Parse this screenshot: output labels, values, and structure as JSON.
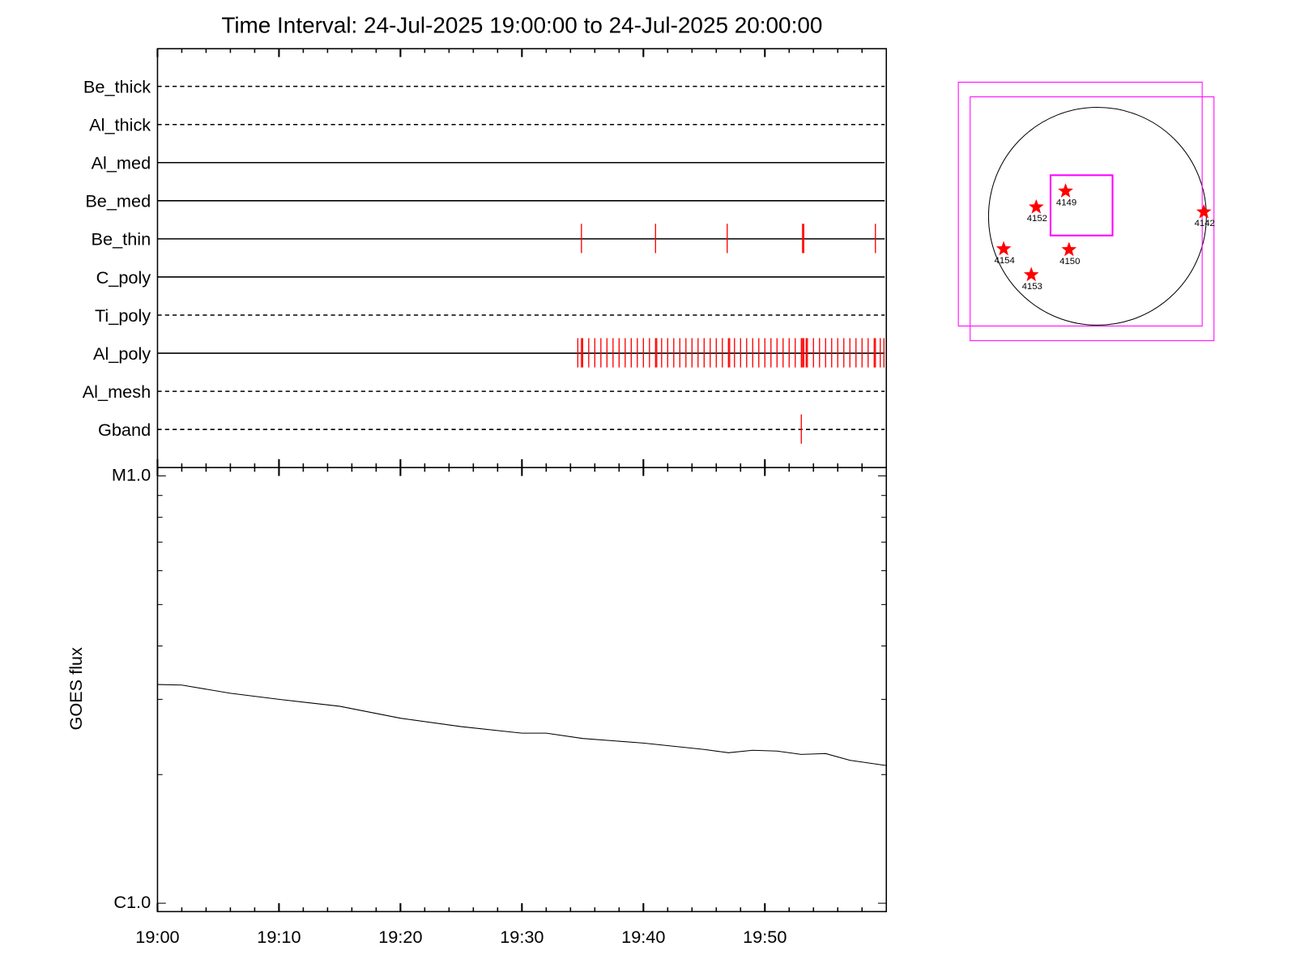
{
  "chart_data": {
    "type": "timeline",
    "title": "Time Interval: 24-Jul-2025 19:00:00 to 24-Jul-2025 20:00:00",
    "xlim": [
      0,
      60
    ],
    "xticks": [
      {
        "value": 0,
        "label": "19:00"
      },
      {
        "value": 10,
        "label": "19:10"
      },
      {
        "value": 20,
        "label": "19:20"
      },
      {
        "value": 30,
        "label": "19:30"
      },
      {
        "value": 40,
        "label": "19:40"
      },
      {
        "value": 50,
        "label": "19:50"
      }
    ],
    "obs_color": "#ff0000",
    "filters": [
      {
        "name": "Be_thick",
        "dashed": true,
        "times": []
      },
      {
        "name": "Al_thick",
        "dashed": true,
        "times": []
      },
      {
        "name": "Al_med",
        "dashed": false,
        "times": []
      },
      {
        "name": "Be_med",
        "dashed": false,
        "times": []
      },
      {
        "name": "Be_thin",
        "dashed": false,
        "times": [
          34.9,
          41.0,
          46.9,
          53.1,
          53.2,
          59.1
        ]
      },
      {
        "name": "C_poly",
        "dashed": false,
        "times": []
      },
      {
        "name": "Ti_poly",
        "dashed": true,
        "times": []
      },
      {
        "name": "Al_poly",
        "dashed": false,
        "times": [
          34.6,
          34.9,
          35.0,
          35.5,
          36.0,
          36.5,
          37.0,
          37.5,
          38.0,
          38.5,
          39.0,
          39.5,
          40.0,
          40.5,
          41.0,
          41.1,
          41.5,
          42.0,
          42.5,
          43.0,
          43.5,
          44.0,
          44.5,
          45.0,
          45.5,
          46.0,
          46.5,
          47.0,
          47.1,
          47.5,
          48.0,
          48.5,
          49.0,
          49.5,
          50.0,
          50.5,
          51.0,
          51.5,
          52.0,
          52.5,
          53.0,
          53.1,
          53.2,
          53.4,
          53.5,
          54.0,
          54.5,
          55.0,
          55.5,
          56.0,
          56.5,
          57.0,
          57.5,
          58.0,
          58.5,
          59.0,
          59.1,
          59.5,
          59.8
        ]
      },
      {
        "name": "Al_mesh",
        "dashed": true,
        "times": []
      },
      {
        "name": "Gband",
        "dashed": true,
        "times": [
          53.0
        ]
      }
    ],
    "goes": {
      "type": "line",
      "ylabel": "GOES flux",
      "log_scale": true,
      "ylim": [
        9.56e-07,
        1.046e-05
      ],
      "yticks": [
        {
          "value": 1e-05,
          "label": "M1.0"
        },
        {
          "value": 1e-06,
          "label": "C1.0"
        }
      ],
      "color": "#000000",
      "x": [
        0,
        2,
        6,
        10,
        15,
        20,
        25,
        30,
        32,
        35,
        40,
        45,
        47,
        49,
        51,
        53,
        55,
        57,
        60
      ],
      "values": [
        3.25e-06,
        3.24e-06,
        3.1e-06,
        3e-06,
        2.89e-06,
        2.71e-06,
        2.59e-06,
        2.5e-06,
        2.5e-06,
        2.43e-06,
        2.37e-06,
        2.29e-06,
        2.25e-06,
        2.28e-06,
        2.27e-06,
        2.23e-06,
        2.24e-06,
        2.16e-06,
        2.1e-06
      ]
    },
    "sun_map": {
      "type": "map",
      "solar_radius": 950,
      "fov_color": "#ff00ff",
      "region_color": "#ff0000",
      "fov": [
        {
          "x": -150,
          "y": 106,
          "w": 2127,
          "h": 2127
        },
        {
          "x": -47,
          "y": -22,
          "w": 2127,
          "h": 2127
        },
        {
          "x": -139,
          "y": 95,
          "w": 541,
          "h": 526
        }
      ],
      "regions": [
        {
          "label": "4149",
          "x": -278,
          "y": 219
        },
        {
          "label": "4152",
          "x": -534,
          "y": 80
        },
        {
          "label": "4142",
          "x": 928,
          "y": 37
        },
        {
          "label": "4154",
          "x": -818,
          "y": -285
        },
        {
          "label": "4150",
          "x": -248,
          "y": -292
        },
        {
          "label": "4153",
          "x": -577,
          "y": -511
        }
      ]
    }
  }
}
